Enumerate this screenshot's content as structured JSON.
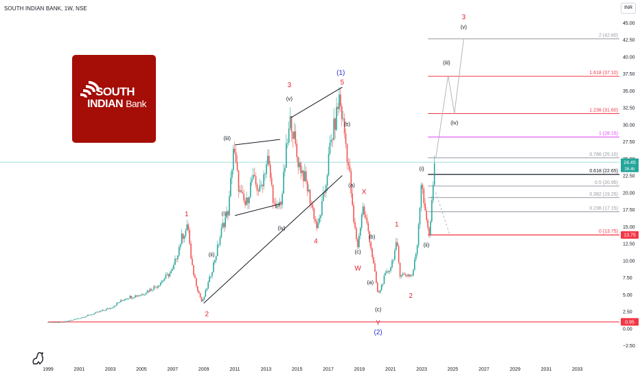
{
  "header": {
    "title": "SOUTH INDIAN BANK, 1W, NSE"
  },
  "currency": "INR",
  "logo": {
    "line1": "SOUTH",
    "line2a": "INDIAN",
    "line2b": "Bank"
  },
  "colors": {
    "price": "#26a69a",
    "price_down": "#ef5350",
    "red_line": "#f23645",
    "magenta_line": "#e040fb",
    "grey_line": "#9598a1",
    "wave_red": "#e0232e",
    "wave_blue": "#2b2bd6",
    "teal_line": "#9fe0da",
    "logo_red": "#a50d07"
  },
  "chart_data": {
    "type": "candlestick",
    "symbol": "SOUTH INDIAN BANK",
    "interval": "1W",
    "exchange": "NSE",
    "xlim": [
      1999.0,
      2035.7
    ],
    "ylim": [
      -3.2,
      46.3
    ],
    "x_ticks": [
      1999,
      2001,
      2003,
      2005,
      2007,
      2009,
      2011,
      2013,
      2015,
      2017,
      2019,
      2021,
      2023,
      2025,
      2027,
      2029,
      2031,
      2033
    ],
    "y_ticks": [
      -2.5,
      0.0,
      2.5,
      5.0,
      7.5,
      10.0,
      12.5,
      15.0,
      17.5,
      20.0,
      22.5,
      25.0,
      27.5,
      30.0,
      32.5,
      35.0,
      37.5,
      40.0,
      42.5,
      45.0
    ],
    "y_tick_labels": [
      "−2.50",
      "0.00",
      "2.50",
      "5.00",
      "7.50",
      "10.00",
      "12.50",
      "15.00",
      "17.50",
      "20.00",
      "22.50",
      "25.00",
      "27.50",
      "30.00",
      "32.50",
      "35.00",
      "37.50",
      "40.00",
      "42.50",
      "45.00"
    ],
    "price_path": [
      [
        1999.0,
        0.9
      ],
      [
        2000.0,
        0.9
      ],
      [
        2001.0,
        1.5
      ],
      [
        2002.0,
        2.2
      ],
      [
        2003.0,
        3.0
      ],
      [
        2004.0,
        4.5
      ],
      [
        2005.0,
        5.0
      ],
      [
        2006.0,
        6.3
      ],
      [
        2007.0,
        8.5
      ],
      [
        2007.6,
        13.5
      ],
      [
        2008.0,
        15.0
      ],
      [
        2008.2,
        9.5
      ],
      [
        2008.6,
        5.8
      ],
      [
        2008.9,
        3.7
      ],
      [
        2009.4,
        7.5
      ],
      [
        2009.8,
        11.0
      ],
      [
        2010.2,
        15.0
      ],
      [
        2010.6,
        17.5
      ],
      [
        2010.9,
        26.6
      ],
      [
        2011.3,
        20.0
      ],
      [
        2011.7,
        18.0
      ],
      [
        2012.1,
        22.0
      ],
      [
        2012.6,
        20.2
      ],
      [
        2013.1,
        25.0
      ],
      [
        2013.6,
        17.0
      ],
      [
        2014.0,
        19.0
      ],
      [
        2014.3,
        26.0
      ],
      [
        2014.6,
        31.0
      ],
      [
        2015.0,
        25.0
      ],
      [
        2015.5,
        22.0
      ],
      [
        2016.0,
        17.5
      ],
      [
        2016.3,
        14.5
      ],
      [
        2016.8,
        20.5
      ],
      [
        2017.1,
        26.5
      ],
      [
        2017.5,
        31.0
      ],
      [
        2017.7,
        34.0
      ],
      [
        2018.0,
        29.5
      ],
      [
        2018.4,
        22.0
      ],
      [
        2018.6,
        16.0
      ],
      [
        2018.9,
        12.0
      ],
      [
        2019.2,
        18.0
      ],
      [
        2019.6,
        14.0
      ],
      [
        2019.9,
        9.5
      ],
      [
        2020.2,
        4.8
      ],
      [
        2020.6,
        7.5
      ],
      [
        2021.0,
        9.0
      ],
      [
        2021.4,
        12.5
      ],
      [
        2021.6,
        8.0
      ],
      [
        2022.0,
        7.9
      ],
      [
        2022.4,
        7.8
      ],
      [
        2022.7,
        12.0
      ],
      [
        2023.0,
        22.5
      ],
      [
        2023.2,
        17.0
      ],
      [
        2023.5,
        14.0
      ],
      [
        2023.8,
        23.0
      ],
      [
        2023.9,
        25.0
      ]
    ],
    "fib_levels": [
      {
        "label": "2 (42.60)",
        "value": 42.6,
        "color": "grey"
      },
      {
        "label": "1.618 (37.10)",
        "value": 37.1,
        "color": "red"
      },
      {
        "label": "1.236 (31.60)",
        "value": 31.6,
        "color": "red"
      },
      {
        "label": "1 (28.15)",
        "value": 28.15,
        "color": "magenta"
      },
      {
        "label": "0.786 (25.10)",
        "value": 25.1,
        "color": "grey"
      },
      {
        "label": "0.618 (22.65)",
        "value": 22.65,
        "color": "black"
      },
      {
        "label": "0.5 (20.95)",
        "value": 20.95,
        "color": "grey"
      },
      {
        "label": "0.382 (19.25)",
        "value": 19.25,
        "color": "grey"
      },
      {
        "label": "0.236 (17.15)",
        "value": 17.15,
        "color": "grey"
      },
      {
        "label": "0 (13.75)",
        "value": 13.75,
        "color": "red"
      }
    ],
    "horizontal_lines": [
      {
        "value": 0.95,
        "color": "red"
      },
      {
        "value": 13.75,
        "color": "red"
      }
    ],
    "price_tags": [
      {
        "label": "24.45",
        "sublabel": "26.4h",
        "value": 24.45,
        "color": "teal"
      },
      {
        "label": "13.75",
        "value": 13.75,
        "color": "red"
      },
      {
        "label": "0.95",
        "value": 0.95,
        "color": "red"
      }
    ],
    "trendlines": [
      {
        "from": [
          2009.0,
          3.7
        ],
        "to": [
          2017.9,
          22.5
        ]
      },
      {
        "from": [
          2014.6,
          31.0
        ],
        "to": [
          2017.9,
          35.5
        ]
      },
      {
        "from": [
          2011.0,
          27.0
        ],
        "to": [
          2013.9,
          27.8
        ]
      },
      {
        "from": [
          2011.0,
          16.6
        ],
        "to": [
          2013.9,
          18.3
        ]
      }
    ],
    "projection": [
      [
        2023.9,
        25.0
      ],
      [
        2024.7,
        37.2
      ],
      [
        2025.1,
        31.6
      ],
      [
        2025.7,
        42.6
      ]
    ],
    "projection_dashed": [
      [
        2023.9,
        20.0
      ],
      [
        2024.8,
        13.8
      ]
    ],
    "wave_labels": [
      {
        "text": "1",
        "x": 2007.9,
        "y": 16.5,
        "color": "red"
      },
      {
        "text": "2",
        "x": 2009.2,
        "y": 1.8,
        "color": "red"
      },
      {
        "text": "3",
        "x": 2014.5,
        "y": 35.5,
        "color": "red"
      },
      {
        "text": "4",
        "x": 2016.2,
        "y": 12.5,
        "color": "red"
      },
      {
        "text": "5",
        "x": 2017.9,
        "y": 35.9,
        "color": "red"
      },
      {
        "text": "(1)",
        "x": 2017.8,
        "y": 37.3,
        "color": "blue"
      },
      {
        "text": "(i)",
        "x": 2010.3,
        "y": 16.6,
        "color": "dark"
      },
      {
        "text": "(ii)",
        "x": 2009.5,
        "y": 10.6,
        "color": "dark"
      },
      {
        "text": "(iii)",
        "x": 2010.5,
        "y": 27.7,
        "color": "dark"
      },
      {
        "text": "(iv)",
        "x": 2014.0,
        "y": 14.5,
        "color": "dark"
      },
      {
        "text": "(v)",
        "x": 2014.5,
        "y": 33.5,
        "color": "dark"
      },
      {
        "text": "(b)",
        "x": 2018.2,
        "y": 29.8,
        "color": "dark"
      },
      {
        "text": "(a)",
        "x": 2018.5,
        "y": 20.8,
        "color": "dark"
      },
      {
        "text": "X",
        "x": 2019.3,
        "y": 19.8,
        "color": "red"
      },
      {
        "text": "(b)",
        "x": 2019.8,
        "y": 13.2,
        "color": "dark"
      },
      {
        "text": "(c)",
        "x": 2018.9,
        "y": 11.0,
        "color": "dark"
      },
      {
        "text": "W",
        "x": 2018.9,
        "y": 8.5,
        "color": "red"
      },
      {
        "text": "(a)",
        "x": 2019.7,
        "y": 6.5,
        "color": "dark"
      },
      {
        "text": "(c)",
        "x": 2020.2,
        "y": 2.5,
        "color": "dark"
      },
      {
        "text": "Y",
        "x": 2020.2,
        "y": 0.5,
        "color": "red"
      },
      {
        "text": "(2)",
        "x": 2020.2,
        "y": -0.9,
        "color": "blue"
      },
      {
        "text": "1",
        "x": 2021.4,
        "y": 15.0,
        "color": "red"
      },
      {
        "text": "2",
        "x": 2022.3,
        "y": 4.5,
        "color": "red"
      },
      {
        "text": "(i)",
        "x": 2023.0,
        "y": 23.2,
        "color": "dark"
      },
      {
        "text": "(ii)",
        "x": 2023.3,
        "y": 12.0,
        "color": "dark"
      },
      {
        "text": "(iii)",
        "x": 2024.6,
        "y": 38.8,
        "color": "dark"
      },
      {
        "text": "(iv)",
        "x": 2025.1,
        "y": 30.0,
        "color": "dark"
      },
      {
        "text": "(v)",
        "x": 2025.7,
        "y": 44.1,
        "color": "dark"
      },
      {
        "text": "3",
        "x": 2025.7,
        "y": 45.5,
        "color": "red"
      }
    ]
  }
}
